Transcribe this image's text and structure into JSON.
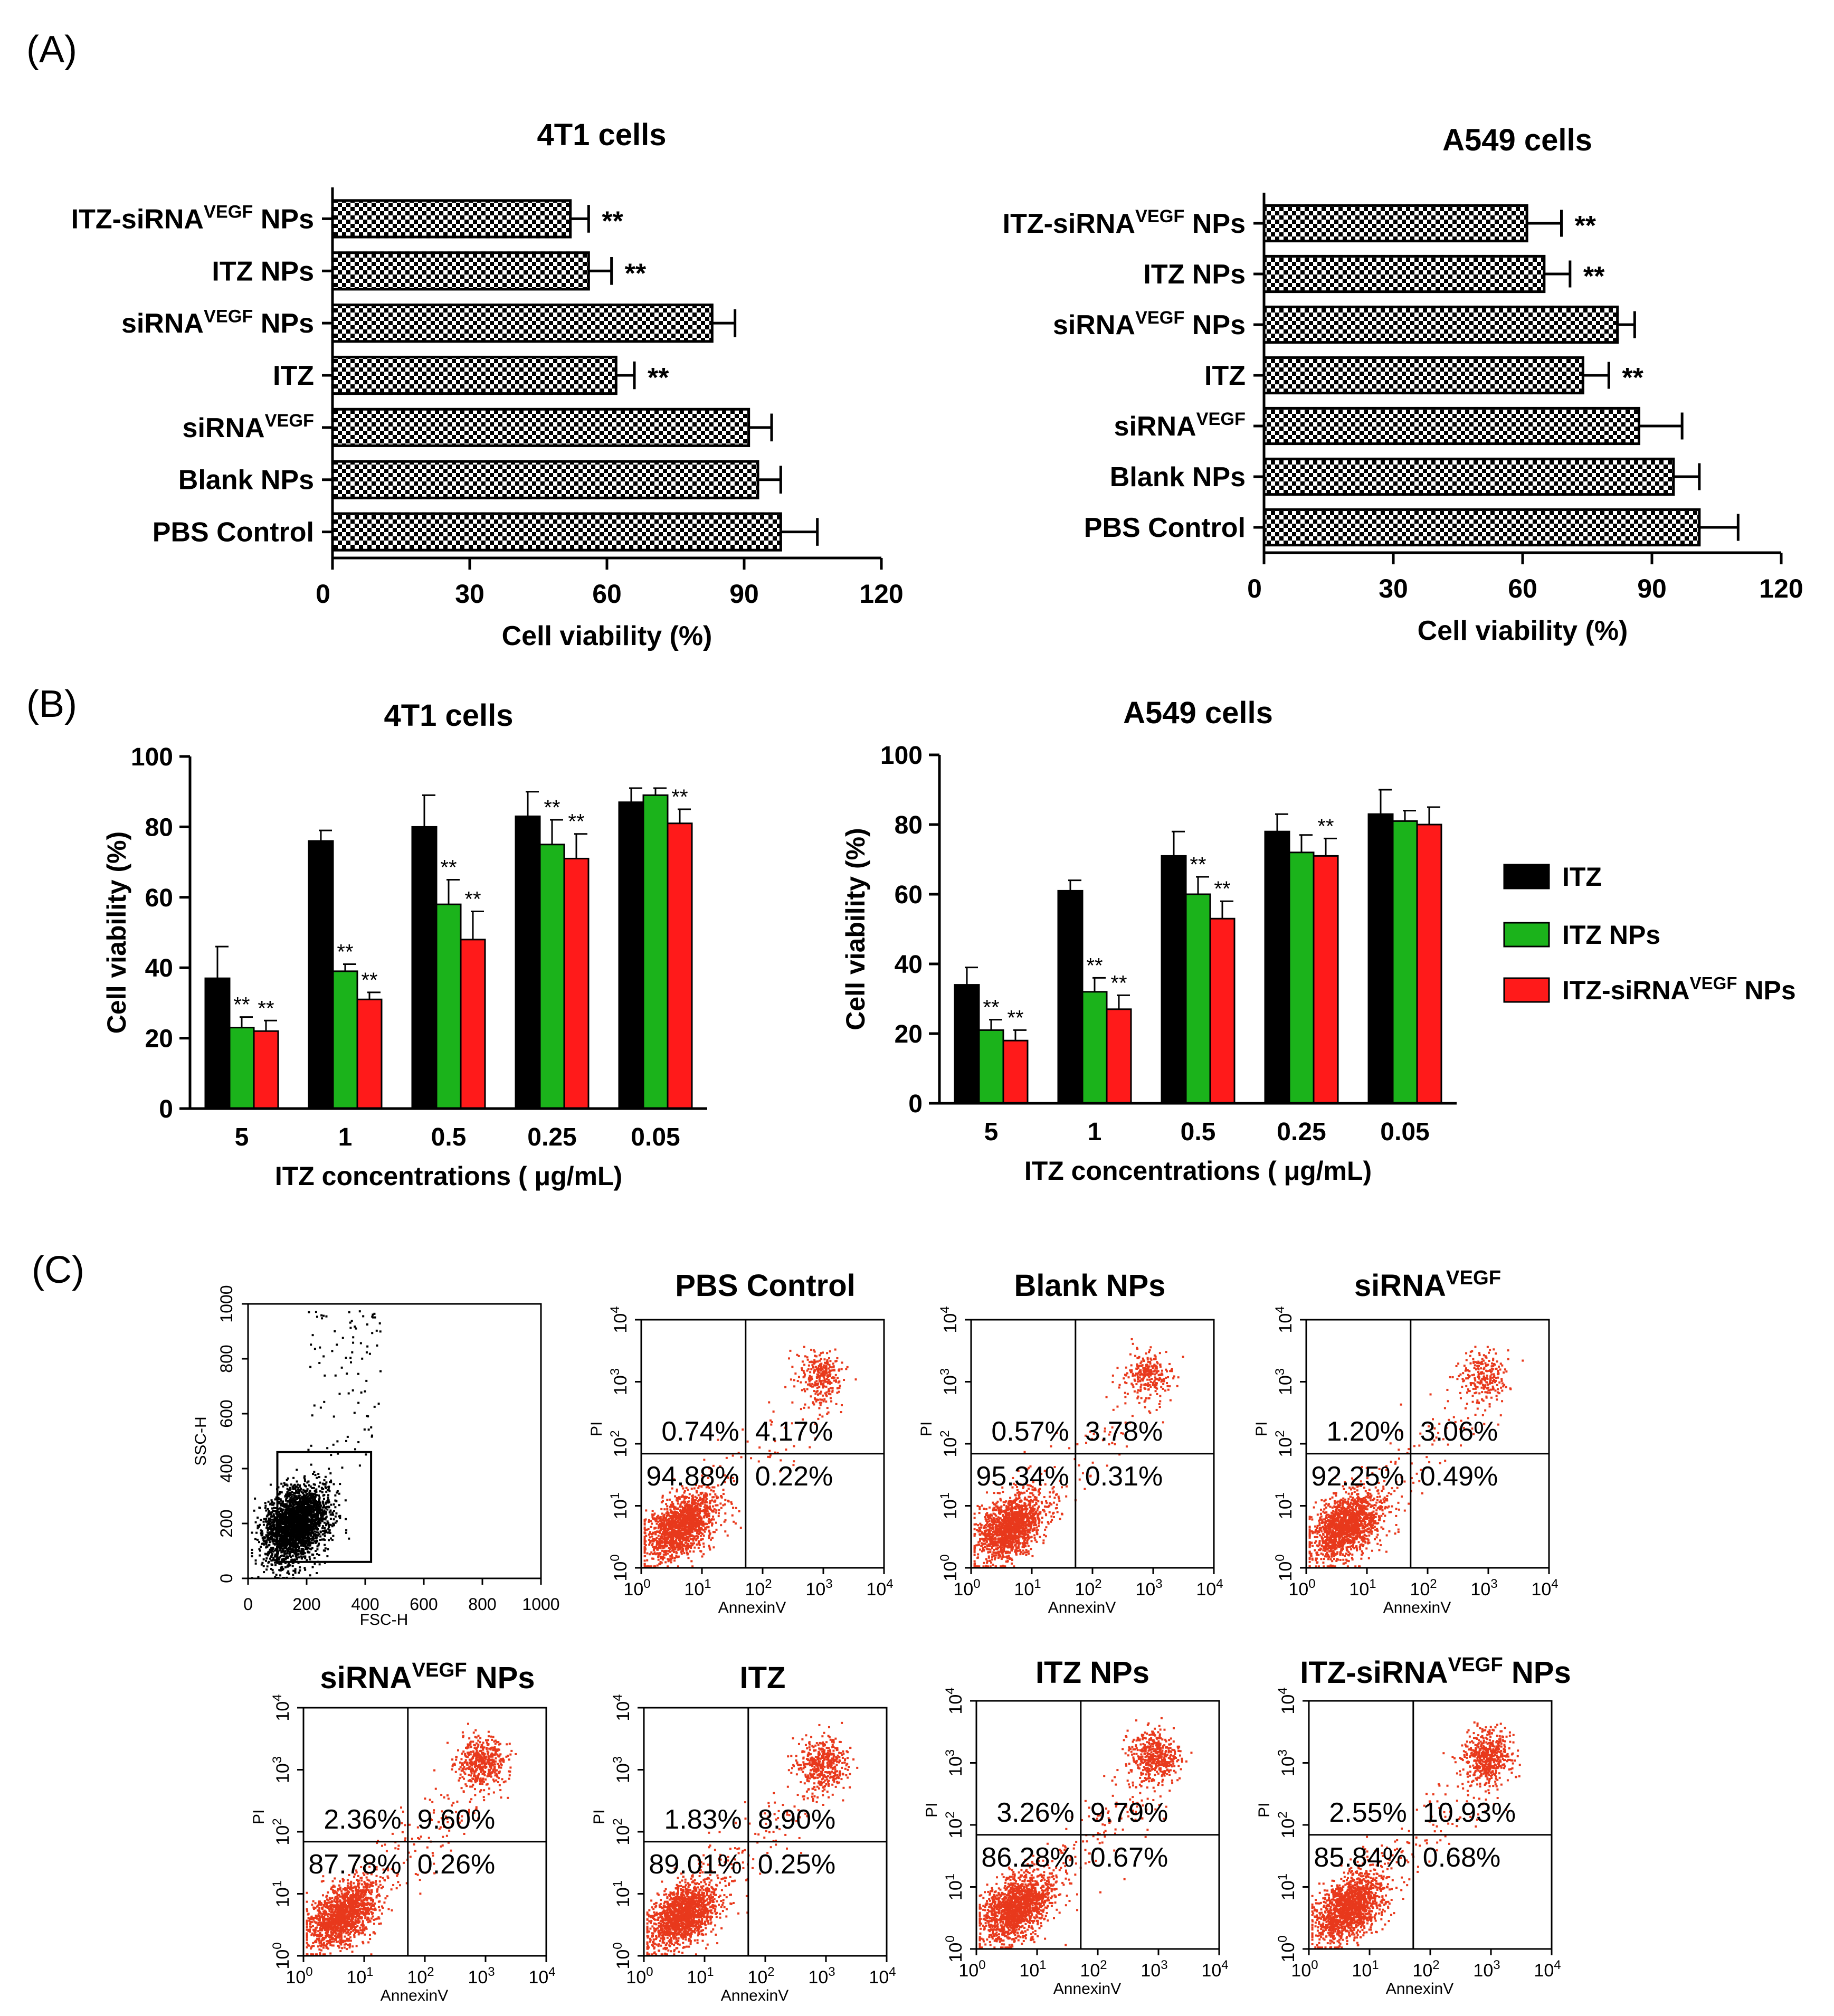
{
  "panel_labels": {
    "a": "(A)",
    "b": "(B)",
    "c": "(C)"
  },
  "colors": {
    "itz": "#000000",
    "itz_nps": "#1bb31b",
    "itz_sirna_nps": "#ff1a1a",
    "dots": "#e8391c"
  },
  "chart_data": [
    {
      "id": "a1",
      "type": "bar",
      "orientation": "horizontal",
      "title": "4T1 cells",
      "xlabel": "Cell viability (%)",
      "xlim": [
        0,
        120
      ],
      "xticks": [
        0,
        30,
        60,
        90,
        120
      ],
      "categories": [
        {
          "pre": "ITZ-siRNA",
          "sup": "VEGF",
          "post": " NPs"
        },
        {
          "pre": "ITZ NPs",
          "sup": "",
          "post": ""
        },
        {
          "pre": "siRNA",
          "sup": "VEGF",
          "post": " NPs"
        },
        {
          "pre": "ITZ",
          "sup": "",
          "post": ""
        },
        {
          "pre": "siRNA",
          "sup": "VEGF",
          "post": ""
        },
        {
          "pre": "Blank NPs",
          "sup": "",
          "post": ""
        },
        {
          "pre": "PBS Control",
          "sup": "",
          "post": ""
        }
      ],
      "values": [
        52,
        56,
        83,
        62,
        91,
        93,
        98
      ],
      "errors": [
        4,
        5,
        5,
        4,
        5,
        5,
        8
      ],
      "significance": [
        "**",
        "**",
        "",
        "**",
        "",
        "",
        ""
      ]
    },
    {
      "id": "a2",
      "type": "bar",
      "orientation": "horizontal",
      "title": "A549 cells",
      "xlabel": "Cell viability (%)",
      "xlim": [
        0,
        120
      ],
      "xticks": [
        0,
        30,
        60,
        90,
        120
      ],
      "categories": [
        {
          "pre": "ITZ-siRNA",
          "sup": "VEGF",
          "post": " NPs"
        },
        {
          "pre": "ITZ NPs",
          "sup": "",
          "post": ""
        },
        {
          "pre": "siRNA",
          "sup": "VEGF",
          "post": " NPs"
        },
        {
          "pre": "ITZ",
          "sup": "",
          "post": ""
        },
        {
          "pre": "siRNA",
          "sup": "VEGF",
          "post": ""
        },
        {
          "pre": "Blank NPs",
          "sup": "",
          "post": ""
        },
        {
          "pre": "PBS Control",
          "sup": "",
          "post": ""
        }
      ],
      "values": [
        61,
        65,
        82,
        74,
        87,
        95,
        101
      ],
      "errors": [
        8,
        6,
        4,
        6,
        10,
        6,
        9
      ],
      "significance": [
        "**",
        "**",
        "",
        "**",
        "",
        "",
        ""
      ]
    },
    {
      "id": "b1",
      "type": "bar",
      "title": "4T1 cells",
      "xlabel": "ITZ concentrations ( μg/mL)",
      "ylabel": "Cell viability (%)",
      "ylim": [
        0,
        100
      ],
      "yticks": [
        0,
        20,
        40,
        60,
        80,
        100
      ],
      "categories": [
        "5",
        "1",
        "0.5",
        "0.25",
        "0.05"
      ],
      "series": [
        {
          "name": "ITZ",
          "color_key": "itz",
          "values": [
            37,
            76,
            80,
            83,
            87
          ],
          "errors": [
            9,
            3,
            9,
            7,
            4
          ],
          "significance": [
            "",
            "",
            "",
            "",
            ""
          ]
        },
        {
          "name": "ITZ NPs",
          "color_key": "itz_nps",
          "values": [
            23,
            39,
            58,
            75,
            89
          ],
          "errors": [
            3,
            2,
            7,
            7,
            2
          ],
          "significance": [
            "**",
            "**",
            "**",
            "**",
            ""
          ]
        },
        {
          "name": "ITZ-siRNA NPs",
          "color_key": "itz_sirna_nps",
          "values": [
            22,
            31,
            48,
            71,
            81
          ],
          "errors": [
            3,
            2,
            8,
            7,
            4
          ],
          "significance": [
            "**",
            "**",
            "**",
            "**",
            "**"
          ]
        }
      ]
    },
    {
      "id": "b2",
      "type": "bar",
      "title": "A549 cells",
      "xlabel": "ITZ concentrations ( μg/mL)",
      "ylabel": "Cell viability (%)",
      "ylim": [
        0,
        100
      ],
      "yticks": [
        0,
        20,
        40,
        60,
        80,
        100
      ],
      "categories": [
        "5",
        "1",
        "0.5",
        "0.25",
        "0.05"
      ],
      "series": [
        {
          "name": "ITZ",
          "color_key": "itz",
          "values": [
            34,
            61,
            71,
            78,
            83
          ],
          "errors": [
            5,
            3,
            7,
            5,
            7
          ],
          "significance": [
            "",
            "",
            "",
            "",
            ""
          ]
        },
        {
          "name": "ITZ NPs",
          "color_key": "itz_nps",
          "values": [
            21,
            32,
            60,
            72,
            81
          ],
          "errors": [
            3,
            4,
            5,
            5,
            3
          ],
          "significance": [
            "**",
            "**",
            "**",
            "",
            ""
          ]
        },
        {
          "name": "ITZ-siRNA NPs",
          "color_key": "itz_sirna_nps",
          "values": [
            18,
            27,
            53,
            71,
            80
          ],
          "errors": [
            3,
            4,
            5,
            5,
            5
          ],
          "significance": [
            "**",
            "**",
            "**",
            "**",
            ""
          ]
        }
      ]
    },
    {
      "id": "c_gate",
      "type": "scatter",
      "xlabel": "FSC-H",
      "ylabel": "SSC-H",
      "xlim": [
        0,
        1000
      ],
      "ylim": [
        0,
        1000
      ],
      "xticks": [
        0,
        200,
        400,
        600,
        800,
        1000
      ],
      "yticks": [
        0,
        200,
        400,
        600,
        800,
        1000
      ],
      "gate_x": [
        100,
        420
      ],
      "gate_y": [
        60,
        460
      ]
    },
    {
      "id": "c_quadrants",
      "type": "scatter",
      "xlabel": "AnnexinV",
      "ylabel": "PI",
      "xtick_base": "10",
      "xtick_exp": [
        "0",
        "1",
        "2",
        "3",
        "4"
      ],
      "samples": [
        {
          "title": "PBS Control",
          "sup": "",
          "post": "",
          "ul": "0.74%",
          "ur": "4.17%",
          "ll": "94.88%",
          "lr": "0.22%"
        },
        {
          "title": "Blank NPs",
          "sup": "",
          "post": "",
          "ul": "0.57%",
          "ur": "3.78%",
          "ll": "95.34%",
          "lr": "0.31%"
        },
        {
          "title": "siRNA",
          "sup": "VEGF",
          "post": "",
          "ul": "1.20%",
          "ur": "3.06%",
          "ll": "92.25%",
          "lr": "0.49%"
        },
        {
          "title": "siRNA",
          "sup": "VEGF",
          "post": " NPs",
          "ul": "2.36%",
          "ur": "9.60%",
          "ll": "87.78%",
          "lr": "0.26%"
        },
        {
          "title": "ITZ",
          "sup": "",
          "post": "",
          "ul": "1.83%",
          "ur": "8.90%",
          "ll": "89.01%",
          "lr": "0.25%"
        },
        {
          "title": "ITZ NPs",
          "sup": "",
          "post": "",
          "ul": "3.26%",
          "ur": "9.79%",
          "ll": "86.28%",
          "lr": "0.67%"
        },
        {
          "title": "ITZ-siRNA",
          "sup": "VEGF",
          "post": " NPs",
          "ul": "2.55%",
          "ur": "10.93%",
          "ll": "85.84%",
          "lr": "0.68%"
        }
      ]
    }
  ]
}
